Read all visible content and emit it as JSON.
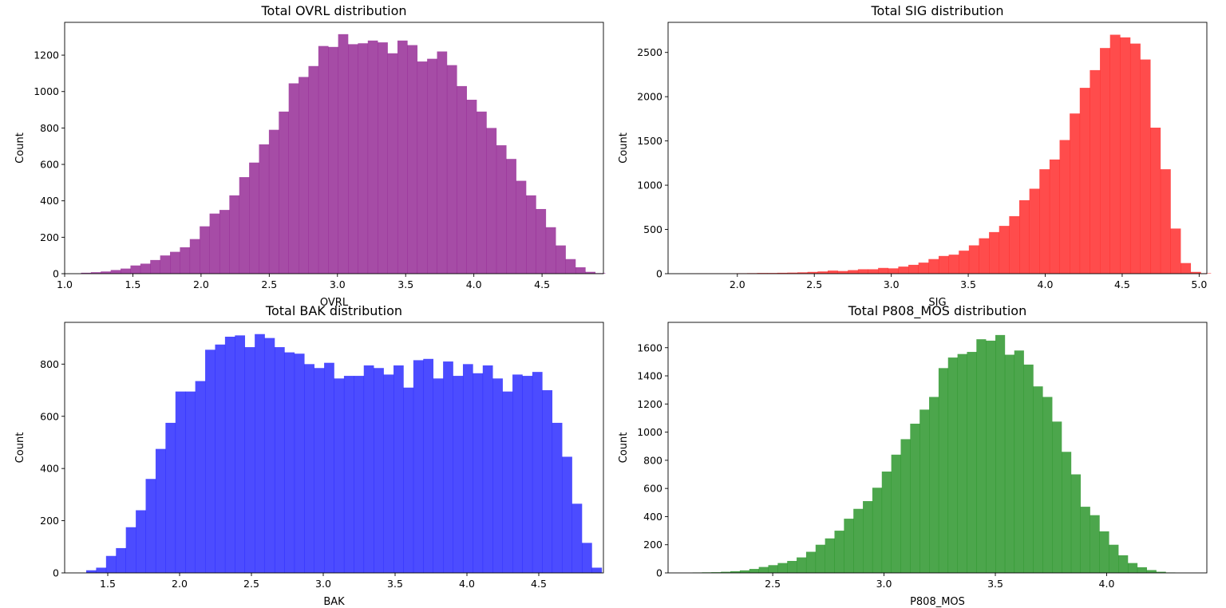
{
  "chart_data": [
    {
      "type": "bar",
      "title": "Total OVRL distribution",
      "xlabel": "OVRL",
      "ylabel": "Count",
      "color": "#800080",
      "opacity": 0.7,
      "xlim": [
        1.0,
        4.95
      ],
      "ylim": [
        0,
        1380
      ],
      "bin_start": 1.12,
      "bin_width": 0.0725,
      "values": [
        5,
        8,
        12,
        20,
        28,
        45,
        55,
        75,
        100,
        120,
        145,
        190,
        260,
        330,
        350,
        430,
        530,
        610,
        710,
        790,
        890,
        1045,
        1080,
        1140,
        1250,
        1245,
        1315,
        1260,
        1265,
        1280,
        1270,
        1210,
        1280,
        1255,
        1165,
        1180,
        1220,
        1145,
        1030,
        955,
        890,
        800,
        705,
        630,
        510,
        430,
        355,
        255,
        155,
        80,
        35,
        10,
        3
      ],
      "xticks": [
        1.0,
        1.5,
        2.0,
        2.5,
        3.0,
        3.5,
        4.0,
        4.5
      ],
      "xtick_labels": [
        "1.0",
        "1.5",
        "2.0",
        "2.5",
        "3.0",
        "3.5",
        "4.0",
        "4.5"
      ],
      "yticks": [
        0,
        200,
        400,
        600,
        800,
        1000,
        1200
      ],
      "ytick_labels": [
        "0",
        "200",
        "400",
        "600",
        "800",
        "1000",
        "1200"
      ]
    },
    {
      "type": "bar",
      "title": "Total SIG distribution",
      "xlabel": "SIG",
      "ylabel": "Count",
      "color": "#ff0000",
      "opacity": 0.7,
      "xlim": [
        1.55,
        5.05
      ],
      "ylim": [
        0,
        2840
      ],
      "bin_start": 1.67,
      "bin_width": 0.0655,
      "values": [
        2,
        3,
        3,
        3,
        4,
        5,
        6,
        8,
        8,
        10,
        12,
        15,
        20,
        25,
        35,
        30,
        40,
        50,
        50,
        65,
        60,
        80,
        100,
        125,
        165,
        200,
        215,
        260,
        320,
        400,
        470,
        540,
        650,
        830,
        960,
        1180,
        1290,
        1510,
        1810,
        2100,
        2300,
        2550,
        2700,
        2670,
        2600,
        2420,
        1650,
        1180,
        510,
        120,
        20,
        5
      ],
      "xticks": [
        2.0,
        2.5,
        3.0,
        3.5,
        4.0,
        4.5,
        5.0
      ],
      "xtick_labels": [
        "2.0",
        "2.5",
        "3.0",
        "3.5",
        "4.0",
        "4.5",
        "5.0"
      ],
      "yticks": [
        0,
        500,
        1000,
        1500,
        2000,
        2500
      ],
      "ytick_labels": [
        "0",
        "500",
        "1000",
        "1500",
        "2000",
        "2500"
      ]
    },
    {
      "type": "bar",
      "title": "Total BAK distribution",
      "xlabel": "BAK",
      "ylabel": "Count",
      "color": "#0000ff",
      "opacity": 0.7,
      "xlim": [
        1.2,
        4.95
      ],
      "ylim": [
        0,
        960
      ],
      "bin_start": 1.35,
      "bin_width": 0.069,
      "values": [
        10,
        20,
        65,
        95,
        175,
        240,
        360,
        475,
        575,
        695,
        695,
        735,
        855,
        875,
        905,
        910,
        865,
        915,
        900,
        865,
        845,
        840,
        800,
        785,
        805,
        745,
        755,
        755,
        795,
        785,
        760,
        795,
        710,
        815,
        820,
        745,
        810,
        755,
        800,
        765,
        795,
        745,
        695,
        760,
        755,
        770,
        700,
        575,
        445,
        265,
        115,
        20
      ],
      "xticks": [
        1.5,
        2.0,
        2.5,
        3.0,
        3.5,
        4.0,
        4.5
      ],
      "xtick_labels": [
        "1.5",
        "2.0",
        "2.5",
        "3.0",
        "3.5",
        "4.0",
        "4.5"
      ],
      "yticks": [
        0,
        200,
        400,
        600,
        800
      ],
      "ytick_labels": [
        "0",
        "200",
        "400",
        "600",
        "800"
      ]
    },
    {
      "type": "bar",
      "title": "Total P808_MOS distribution",
      "xlabel": "P808_MOS",
      "ylabel": "Count",
      "color": "#008000",
      "opacity": 0.7,
      "xlim": [
        2.03,
        4.45
      ],
      "ylim": [
        0,
        1780
      ],
      "bin_start": 2.14,
      "bin_width": 0.0425,
      "values": [
        3,
        4,
        5,
        8,
        12,
        18,
        28,
        42,
        55,
        70,
        85,
        110,
        150,
        200,
        245,
        300,
        385,
        455,
        510,
        605,
        720,
        840,
        950,
        1060,
        1160,
        1250,
        1455,
        1530,
        1555,
        1570,
        1660,
        1650,
        1690,
        1550,
        1580,
        1480,
        1325,
        1250,
        1075,
        860,
        700,
        470,
        410,
        295,
        200,
        125,
        70,
        40,
        20,
        8,
        3
      ],
      "xticks": [
        2.5,
        3.0,
        3.5,
        4.0
      ],
      "xtick_labels": [
        "2.5",
        "3.0",
        "3.5",
        "4.0"
      ],
      "yticks": [
        0,
        200,
        400,
        600,
        800,
        1000,
        1200,
        1400,
        1600
      ],
      "ytick_labels": [
        "0",
        "200",
        "400",
        "600",
        "800",
        "1000",
        "1200",
        "1400",
        "1600"
      ]
    }
  ]
}
